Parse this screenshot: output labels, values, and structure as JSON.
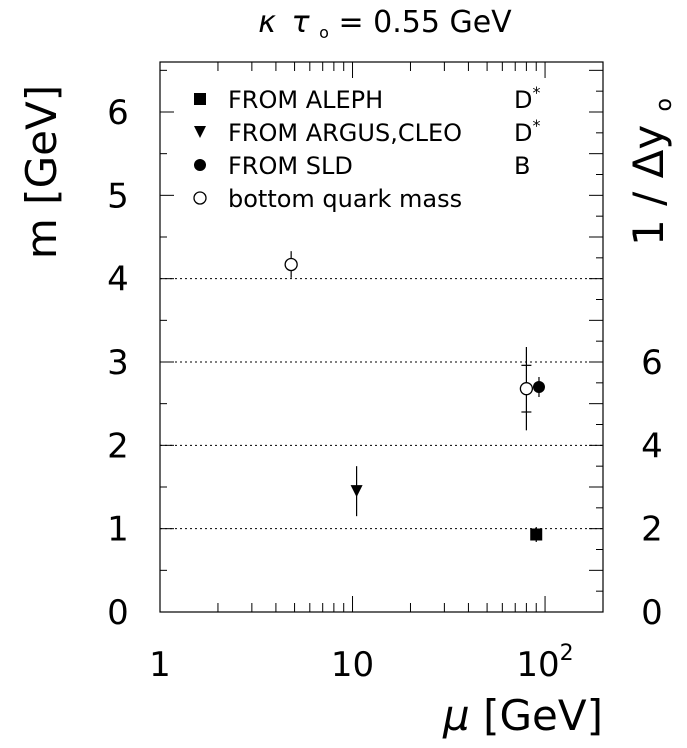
{
  "chart_data": {
    "type": "scatter",
    "title": "κ τ₀ = 0.55 GeV",
    "title_parts": {
      "kappa": "κ",
      "tau": "τ",
      "sub": "o",
      "rest": " = 0.55 GeV"
    },
    "xlabel": "μ [GeV]",
    "xlabel_parts": {
      "mu": "μ",
      "unit": " [GeV]"
    },
    "ylabel": "m [GeV]",
    "y2label": "1/Δy₀",
    "y2label_parts": {
      "one": "1",
      "slash": "/",
      "delta": "Δy",
      "sub": "o"
    },
    "x_scale": "log",
    "xlim": [
      1,
      200
    ],
    "ylim": [
      0,
      6.6
    ],
    "y2_factor": 0.5,
    "x_ticks": [
      {
        "value": 1,
        "label": "1",
        "exp": ""
      },
      {
        "value": 10,
        "label": "10",
        "exp": ""
      },
      {
        "value": 100,
        "label": "10",
        "exp": "2"
      }
    ],
    "y_ticks": [
      "0",
      "1",
      "2",
      "3",
      "4",
      "5",
      "6"
    ],
    "y2_ticks": [
      "0",
      "2",
      "4",
      "6"
    ],
    "gridlines_y": [
      1,
      2,
      3,
      4
    ],
    "legend_placement": "top-left",
    "series": [
      {
        "name": "FROM ALEPH",
        "tag": "D",
        "tag_sup": "*",
        "marker": "square",
        "points": [
          {
            "x": 90,
            "y": 0.93,
            "yerr": 0.09
          }
        ]
      },
      {
        "name": "FROM ARGUS,CLEO",
        "tag": "D",
        "tag_sup": "*",
        "marker": "triangle-down",
        "points": [
          {
            "x": 10.5,
            "y": 1.45,
            "yerr": 0.3
          }
        ]
      },
      {
        "name": "FROM SLD",
        "tag": "B",
        "tag_sup": "",
        "marker": "circle-filled",
        "points": [
          {
            "x": 93,
            "y": 2.7,
            "yerr": 0.12
          }
        ]
      },
      {
        "name": "bottom quark mass",
        "tag": "",
        "tag_sup": "",
        "marker": "circle-open",
        "points": [
          {
            "x": 4.8,
            "y": 4.17,
            "yerr": 0.16
          },
          {
            "x": 80,
            "y": 2.68,
            "yerr": 0.28,
            "yerr_outer": 0.5
          }
        ]
      }
    ]
  }
}
